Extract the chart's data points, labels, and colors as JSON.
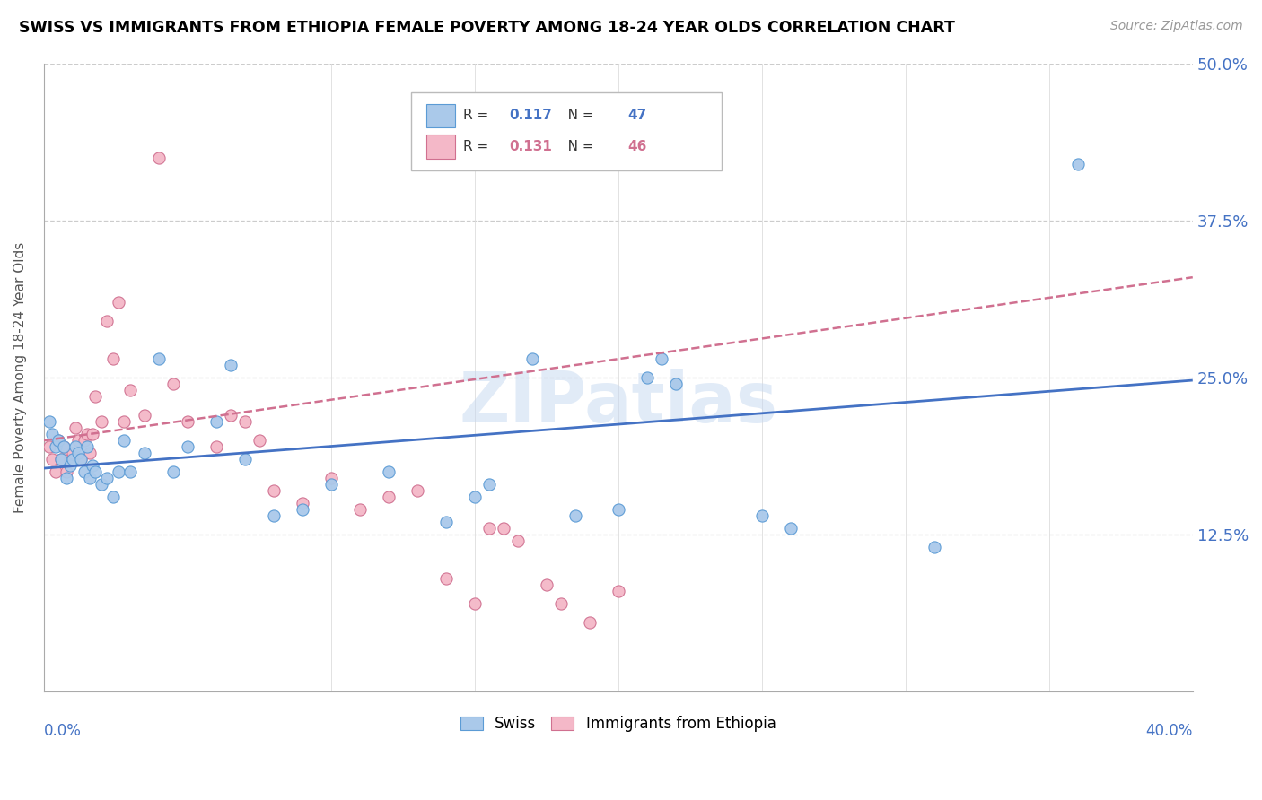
{
  "title": "SWISS VS IMMIGRANTS FROM ETHIOPIA FEMALE POVERTY AMONG 18-24 YEAR OLDS CORRELATION CHART",
  "source": "Source: ZipAtlas.com",
  "ylabel": "Female Poverty Among 18-24 Year Olds",
  "ytick_values": [
    0,
    0.125,
    0.25,
    0.375,
    0.5
  ],
  "ytick_labels": [
    "",
    "12.5%",
    "25.0%",
    "37.5%",
    "50.0%"
  ],
  "xlim": [
    0,
    0.4
  ],
  "ylim": [
    0,
    0.5
  ],
  "watermark": "ZIPatlas",
  "swiss_R": "0.117",
  "swiss_N": "47",
  "ethiopia_R": "0.131",
  "ethiopia_N": "46",
  "swiss_color": "#aac9ea",
  "swiss_edge_color": "#5b9bd5",
  "ethiopia_color": "#f4b8c8",
  "ethiopia_edge_color": "#d07090",
  "swiss_line_color": "#4472c4",
  "ethiopia_line_color": "#d07090",
  "swiss_x": [
    0.002,
    0.003,
    0.004,
    0.005,
    0.006,
    0.007,
    0.008,
    0.009,
    0.01,
    0.011,
    0.012,
    0.013,
    0.014,
    0.015,
    0.016,
    0.017,
    0.018,
    0.02,
    0.022,
    0.024,
    0.026,
    0.028,
    0.03,
    0.035,
    0.04,
    0.045,
    0.05,
    0.06,
    0.065,
    0.07,
    0.08,
    0.09,
    0.1,
    0.12,
    0.14,
    0.15,
    0.155,
    0.17,
    0.185,
    0.2,
    0.21,
    0.215,
    0.22,
    0.25,
    0.26,
    0.31,
    0.36
  ],
  "swiss_y": [
    0.215,
    0.205,
    0.195,
    0.2,
    0.185,
    0.195,
    0.17,
    0.18,
    0.185,
    0.195,
    0.19,
    0.185,
    0.175,
    0.195,
    0.17,
    0.18,
    0.175,
    0.165,
    0.17,
    0.155,
    0.175,
    0.2,
    0.175,
    0.19,
    0.265,
    0.175,
    0.195,
    0.215,
    0.26,
    0.185,
    0.14,
    0.145,
    0.165,
    0.175,
    0.135,
    0.155,
    0.165,
    0.265,
    0.14,
    0.145,
    0.25,
    0.265,
    0.245,
    0.14,
    0.13,
    0.115,
    0.42
  ],
  "ethiopia_x": [
    0.002,
    0.003,
    0.004,
    0.005,
    0.006,
    0.007,
    0.008,
    0.009,
    0.01,
    0.011,
    0.012,
    0.013,
    0.014,
    0.015,
    0.016,
    0.017,
    0.018,
    0.02,
    0.022,
    0.024,
    0.026,
    0.028,
    0.03,
    0.035,
    0.04,
    0.045,
    0.05,
    0.06,
    0.065,
    0.07,
    0.075,
    0.08,
    0.09,
    0.1,
    0.11,
    0.12,
    0.13,
    0.14,
    0.15,
    0.155,
    0.16,
    0.165,
    0.175,
    0.18,
    0.19,
    0.2
  ],
  "ethiopia_y": [
    0.195,
    0.185,
    0.175,
    0.2,
    0.185,
    0.195,
    0.175,
    0.185,
    0.19,
    0.21,
    0.2,
    0.185,
    0.2,
    0.205,
    0.19,
    0.205,
    0.235,
    0.215,
    0.295,
    0.265,
    0.31,
    0.215,
    0.24,
    0.22,
    0.425,
    0.245,
    0.215,
    0.195,
    0.22,
    0.215,
    0.2,
    0.16,
    0.15,
    0.17,
    0.145,
    0.155,
    0.16,
    0.09,
    0.07,
    0.13,
    0.13,
    0.12,
    0.085,
    0.07,
    0.055,
    0.08
  ],
  "swiss_trend_x": [
    0.0,
    0.4
  ],
  "swiss_trend_y": [
    0.178,
    0.248
  ],
  "ethiopia_trend_x": [
    0.0,
    0.4
  ],
  "ethiopia_trend_y": [
    0.2,
    0.33
  ]
}
